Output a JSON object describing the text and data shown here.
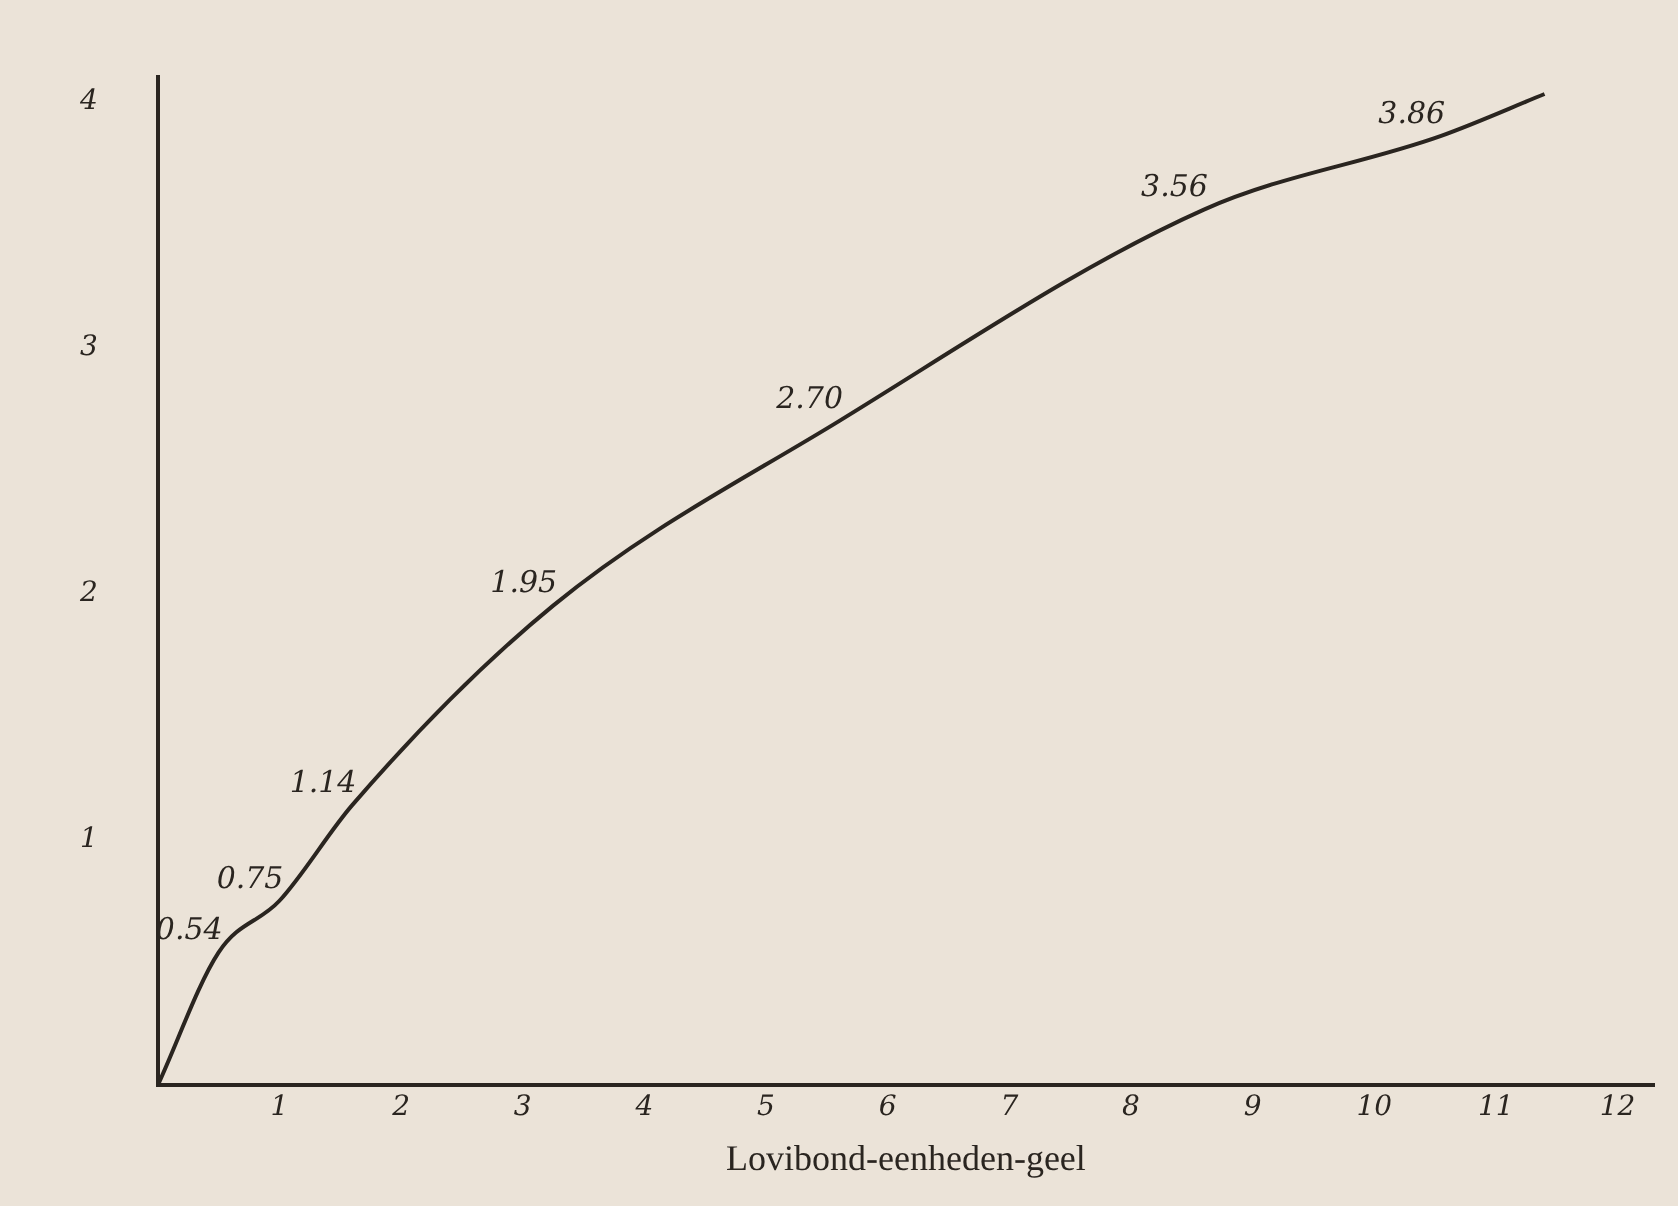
{
  "chart_data": {
    "type": "line",
    "xlabel": "Lovibond-eenheden-geel",
    "x": [
      0,
      0.5,
      1,
      1.6,
      3.25,
      5.6,
      8.6,
      10.55,
      11.4
    ],
    "series": [
      {
        "color": "#2a2520",
        "values": [
          0,
          0.54,
          0.75,
          1.14,
          1.95,
          2.7,
          3.56,
          3.86,
          4.03
        ],
        "value_labels": [
          null,
          "0.54",
          "0.75",
          "1.14",
          "1.95",
          "2.70",
          "3.56",
          "3.86",
          null
        ]
      }
    ],
    "xlim": [
      0,
      12.3
    ],
    "ylim": [
      0,
      4.1
    ],
    "xticks": [
      1,
      2,
      3,
      4,
      5,
      6,
      7,
      8,
      9,
      10,
      11,
      12
    ],
    "yticks": [
      1,
      2,
      3,
      4
    ],
    "grid": false,
    "legend": false,
    "marker": "none",
    "line_style": "solid"
  }
}
